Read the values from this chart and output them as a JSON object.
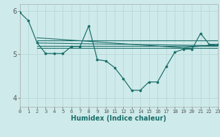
{
  "xlabel": "Humidex (Indice chaleur)",
  "bg_color": "#ceeaea",
  "grid_color": "#b8d8d8",
  "line_color": "#1a6e6a",
  "x_min": 0,
  "x_max": 23,
  "y_min": 3.8,
  "y_max": 6.15,
  "yticks": [
    4,
    5,
    6
  ],
  "xticks": [
    0,
    1,
    2,
    3,
    4,
    5,
    6,
    7,
    8,
    9,
    10,
    11,
    12,
    13,
    14,
    15,
    16,
    17,
    18,
    19,
    20,
    21,
    22,
    23
  ],
  "main_line_x": [
    0,
    1,
    2,
    3,
    4,
    5,
    6,
    7,
    8,
    9,
    10,
    11,
    12,
    13,
    14,
    15,
    16,
    17,
    18,
    19,
    20,
    21,
    22,
    23
  ],
  "main_line_y": [
    5.96,
    5.77,
    5.27,
    5.02,
    5.02,
    5.02,
    5.18,
    5.18,
    5.65,
    4.88,
    4.85,
    4.7,
    4.45,
    4.18,
    4.18,
    4.37,
    4.37,
    4.72,
    5.05,
    5.12,
    5.12,
    5.48,
    5.23,
    5.23
  ],
  "ref_lines": [
    {
      "x": [
        2,
        23
      ],
      "y": [
        5.32,
        5.32
      ]
    },
    {
      "x": [
        2,
        23
      ],
      "y": [
        5.26,
        5.2
      ]
    },
    {
      "x": [
        2,
        23
      ],
      "y": [
        5.2,
        5.2
      ]
    },
    {
      "x": [
        2,
        23
      ],
      "y": [
        5.15,
        5.15
      ]
    },
    {
      "x": [
        2,
        19,
        23
      ],
      "y": [
        5.38,
        5.15,
        5.23
      ]
    }
  ]
}
